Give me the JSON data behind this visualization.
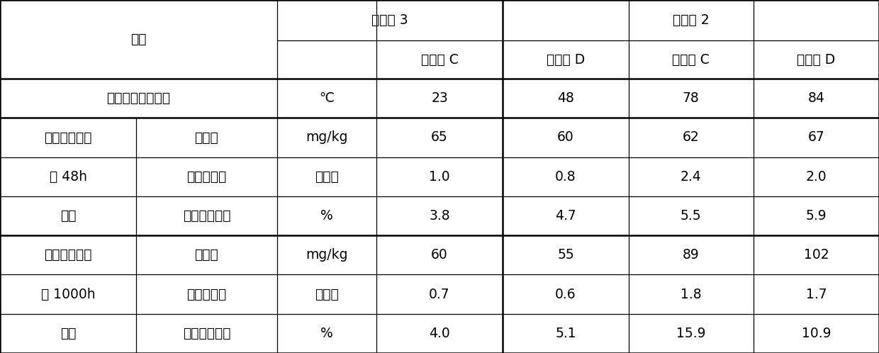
{
  "header_row1_left": "项目",
  "header_row1_mid": "实施例 3",
  "header_row1_right": "对比例 2",
  "header_row2": [
    "催化剂 C",
    "催化剂 D",
    "催化剂 C",
    "催化剂 D"
  ],
  "row_data": [
    {
      "group": "投油过程最高温升",
      "sub": "",
      "unit": "℃",
      "vals": [
        "23",
        "48",
        "78",
        "84"
      ],
      "is_group_header": true,
      "group_span": 1
    },
    {
      "group": "开工后正常运",
      "sub": "硫含量",
      "unit": "mg/kg",
      "vals": [
        "65",
        "60",
        "62",
        "67"
      ],
      "is_group_header": true,
      "group_span": 3
    },
    {
      "group": "行 48h",
      "sub": "辛烷值损失",
      "unit": "个单位",
      "vals": [
        "1.0",
        "0.8",
        "2.4",
        "2.0"
      ],
      "is_group_header": false,
      "group_span": 0
    },
    {
      "group": "产品",
      "sub": "催化剂覆碳量",
      "unit": "%",
      "vals": [
        "3.8",
        "4.7",
        "5.5",
        "5.9"
      ],
      "is_group_header": false,
      "group_span": 0
    },
    {
      "group": "开工后正常运",
      "sub": "硫含量",
      "unit": "mg/kg",
      "vals": [
        "60",
        "55",
        "89",
        "102"
      ],
      "is_group_header": true,
      "group_span": 3
    },
    {
      "group": "行 1000h",
      "sub": "辛烷值损失",
      "unit": "个单位",
      "vals": [
        "0.7",
        "0.6",
        "1.8",
        "1.7"
      ],
      "is_group_header": false,
      "group_span": 0
    },
    {
      "group": "产品",
      "sub": "催化剂覆碳量",
      "unit": "%",
      "vals": [
        "4.0",
        "5.1",
        "15.9",
        "10.9"
      ],
      "is_group_header": false,
      "group_span": 0
    }
  ],
  "group_labels_48h": [
    "开工后正常运",
    "行 48h",
    "产品"
  ],
  "group_labels_1000h": [
    "开工后正常运",
    "行 1000h",
    "产品"
  ],
  "bg_color": "#ffffff",
  "line_color": "#000000",
  "font_size": 13.5
}
